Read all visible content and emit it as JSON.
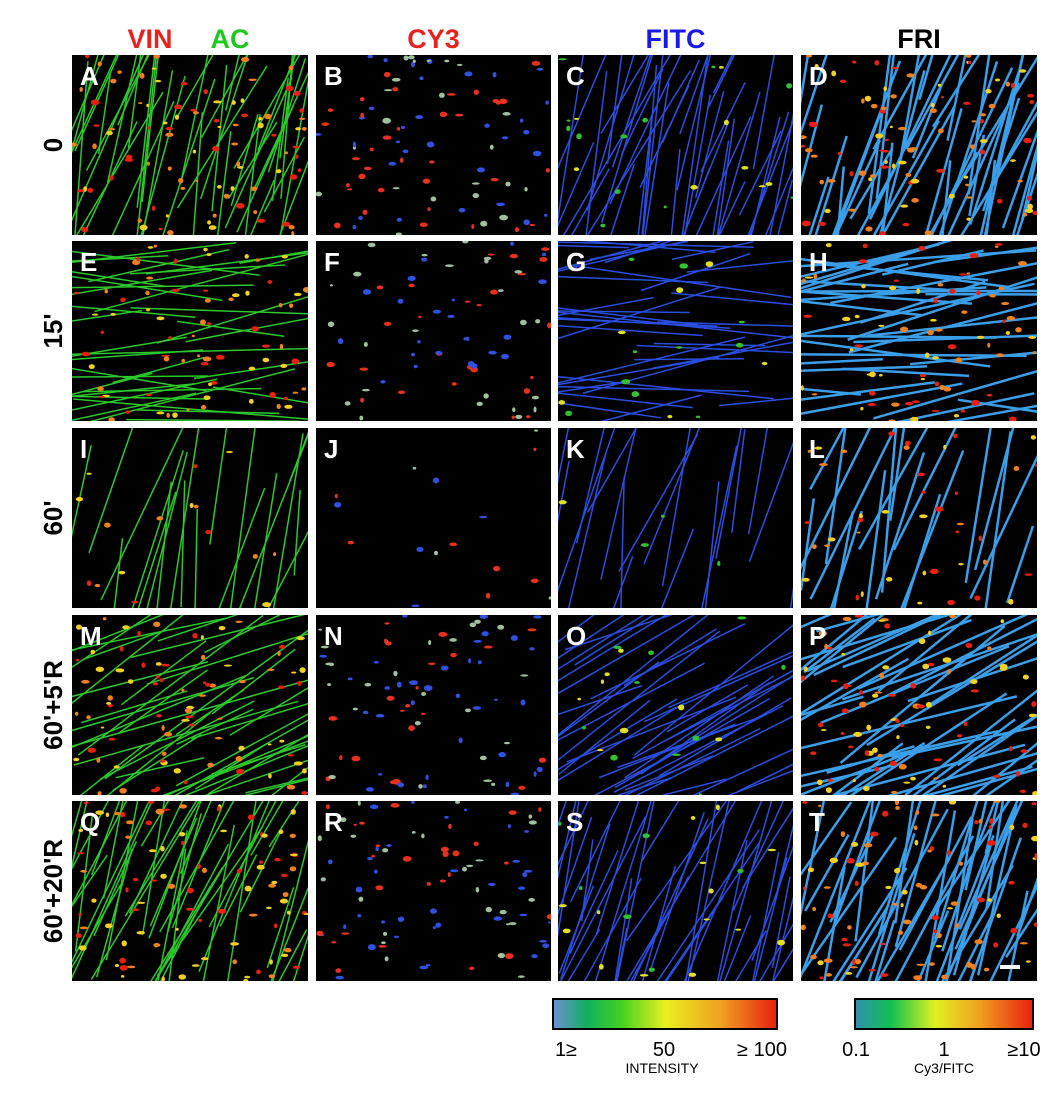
{
  "columns": [
    {
      "header": [
        "VIN",
        "AC"
      ]
    },
    {
      "header": [
        "CY3"
      ]
    },
    {
      "header": [
        "FITC"
      ]
    },
    {
      "header": [
        "FRI"
      ]
    }
  ],
  "rows": [
    "0",
    "15'",
    "60'",
    "60'+5'R",
    "60'+20'R"
  ],
  "panels": [
    [
      "A",
      "B",
      "C",
      "D"
    ],
    [
      "E",
      "F",
      "G",
      "H"
    ],
    [
      "I",
      "J",
      "K",
      "L"
    ],
    [
      "M",
      "N",
      "O",
      "P"
    ],
    [
      "Q",
      "R",
      "S",
      "T"
    ]
  ],
  "colorbars": [
    {
      "ticks": [
        "1≥",
        "50",
        "≥ 100"
      ],
      "label": "INTENSITY"
    },
    {
      "ticks": [
        "0.1",
        "1",
        "≥10"
      ],
      "label": "Cy3/FITC"
    }
  ]
}
